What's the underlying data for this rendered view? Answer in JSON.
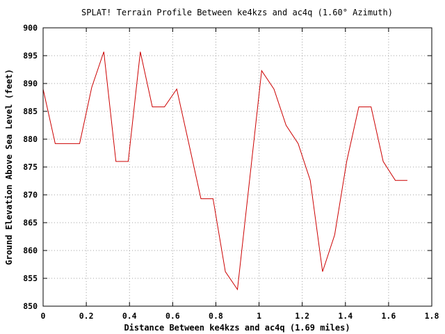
{
  "chart_data": {
    "type": "line",
    "title": "SPLAT! Terrain Profile Between ke4kzs and ac4q (1.60° Azimuth)",
    "xlabel": "Distance Between ke4kzs and ac4q (1.69 miles)",
    "ylabel": "Ground Elevation Above Sea Level (feet)",
    "xlim": [
      0,
      1.8
    ],
    "ylim": [
      850,
      900
    ],
    "xticks": [
      0,
      0.2,
      0.4,
      0.6,
      0.8,
      1,
      1.2,
      1.4,
      1.6,
      1.8
    ],
    "xtick_labels": [
      "0",
      "0.2",
      "0.4",
      "0.6",
      "0.8",
      "1",
      "1.2",
      "1.4",
      "1.6",
      "1.8"
    ],
    "yticks": [
      850,
      855,
      860,
      865,
      870,
      875,
      880,
      885,
      890,
      895,
      900
    ],
    "ytick_labels": [
      "850",
      "855",
      "860",
      "865",
      "870",
      "875",
      "880",
      "885",
      "890",
      "895",
      "900"
    ],
    "grid": true,
    "series": [
      {
        "color": "#cc0000",
        "x": [
          0,
          0.056,
          0.112,
          0.169,
          0.225,
          0.281,
          0.337,
          0.394,
          0.45,
          0.506,
          0.562,
          0.619,
          0.675,
          0.731,
          0.787,
          0.844,
          0.9,
          0.956,
          1.012,
          1.069,
          1.125,
          1.181,
          1.237,
          1.294,
          1.35,
          1.406,
          1.462,
          1.519,
          1.575,
          1.631,
          1.687
        ],
        "y": [
          889,
          879.2,
          879.2,
          879.2,
          889.3,
          895.7,
          876,
          876,
          895.7,
          885.8,
          885.8,
          889,
          879.2,
          869.3,
          869.3,
          856.2,
          853,
          872.6,
          892.3,
          889,
          882.5,
          879.2,
          872.6,
          856.2,
          862.8,
          876,
          885.8,
          885.8,
          876,
          872.6,
          872.6
        ]
      }
    ]
  }
}
